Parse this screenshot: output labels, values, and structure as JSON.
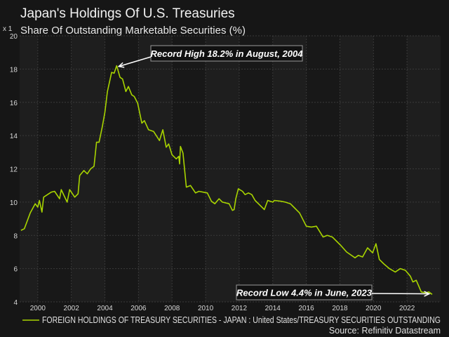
{
  "chart_data": {
    "type": "line",
    "title": "Japan's Holdings Of U.S. Treasuries",
    "subtitle": "Share Of Outstanding Marketable Securities (%)",
    "y_multiplier_label": "x 1",
    "xlim": [
      1998.92,
      2024.0
    ],
    "ylim": [
      4,
      20
    ],
    "x_ticks": [
      "2000",
      "2002",
      "2004",
      "2006",
      "2008",
      "2010",
      "2012",
      "2014",
      "2016",
      "2018",
      "2020",
      "2022"
    ],
    "y_ticks": [
      "4",
      "6",
      "8",
      "10",
      "12",
      "14",
      "16",
      "18",
      "20"
    ],
    "grid": true,
    "line_color": "#a8d400",
    "series": [
      {
        "name": "FOREIGN HOLDINGS OF TREASURY SECURITIES - JAPAN : United States/TREASURY SECURITIES OUTSTANDING",
        "points": [
          [
            1999.0,
            8.3
          ],
          [
            1999.2,
            8.4
          ],
          [
            1999.55,
            9.35
          ],
          [
            1999.85,
            9.9
          ],
          [
            2000.0,
            9.7
          ],
          [
            2000.1,
            10.1
          ],
          [
            2000.25,
            9.4
          ],
          [
            2000.35,
            10.3
          ],
          [
            2000.8,
            10.6
          ],
          [
            2001.0,
            10.65
          ],
          [
            2001.3,
            10.2
          ],
          [
            2001.4,
            10.75
          ],
          [
            2001.75,
            10.0
          ],
          [
            2001.9,
            10.75
          ],
          [
            2002.2,
            10.3
          ],
          [
            2002.4,
            10.5
          ],
          [
            2002.5,
            11.6
          ],
          [
            2002.75,
            11.9
          ],
          [
            2002.95,
            11.7
          ],
          [
            2003.15,
            12.0
          ],
          [
            2003.35,
            12.15
          ],
          [
            2003.5,
            13.6
          ],
          [
            2003.65,
            13.6
          ],
          [
            2003.85,
            14.55
          ],
          [
            2004.0,
            15.4
          ],
          [
            2004.15,
            16.65
          ],
          [
            2004.4,
            17.8
          ],
          [
            2004.55,
            17.75
          ],
          [
            2004.7,
            18.2
          ],
          [
            2004.9,
            17.5
          ],
          [
            2005.05,
            17.4
          ],
          [
            2005.25,
            16.65
          ],
          [
            2005.4,
            16.95
          ],
          [
            2005.6,
            16.45
          ],
          [
            2005.75,
            16.35
          ],
          [
            2005.95,
            15.95
          ],
          [
            2006.2,
            14.75
          ],
          [
            2006.35,
            14.9
          ],
          [
            2006.6,
            14.35
          ],
          [
            2006.9,
            14.25
          ],
          [
            2007.25,
            13.7
          ],
          [
            2007.45,
            14.35
          ],
          [
            2007.65,
            13.3
          ],
          [
            2007.8,
            13.5
          ],
          [
            2008.0,
            12.85
          ],
          [
            2008.25,
            12.6
          ],
          [
            2008.4,
            12.75
          ],
          [
            2008.45,
            12.3
          ],
          [
            2008.5,
            13.35
          ],
          [
            2008.65,
            12.95
          ],
          [
            2008.85,
            10.9
          ],
          [
            2009.1,
            11.0
          ],
          [
            2009.4,
            10.55
          ],
          [
            2009.6,
            10.65
          ],
          [
            2010.1,
            10.55
          ],
          [
            2010.35,
            10.05
          ],
          [
            2010.55,
            9.9
          ],
          [
            2010.8,
            10.2
          ],
          [
            2011.0,
            10.0
          ],
          [
            2011.4,
            9.9
          ],
          [
            2011.6,
            9.5
          ],
          [
            2011.7,
            9.55
          ],
          [
            2011.8,
            10.2
          ],
          [
            2011.95,
            10.8
          ],
          [
            2012.2,
            10.65
          ],
          [
            2012.35,
            10.45
          ],
          [
            2012.55,
            10.55
          ],
          [
            2012.75,
            10.45
          ],
          [
            2012.95,
            10.1
          ],
          [
            2013.25,
            9.8
          ],
          [
            2013.5,
            9.55
          ],
          [
            2013.7,
            10.1
          ],
          [
            2014.0,
            10.0
          ],
          [
            2014.1,
            10.1
          ],
          [
            2014.5,
            10.05
          ],
          [
            2014.75,
            10.0
          ],
          [
            2015.05,
            9.9
          ],
          [
            2015.25,
            9.7
          ],
          [
            2015.6,
            9.35
          ],
          [
            2016.0,
            8.55
          ],
          [
            2016.3,
            8.5
          ],
          [
            2016.6,
            8.55
          ],
          [
            2017.0,
            7.9
          ],
          [
            2017.25,
            8.0
          ],
          [
            2017.55,
            7.9
          ],
          [
            2018.05,
            7.4
          ],
          [
            2018.4,
            7.0
          ],
          [
            2018.9,
            6.65
          ],
          [
            2019.1,
            6.8
          ],
          [
            2019.35,
            6.7
          ],
          [
            2019.65,
            7.25
          ],
          [
            2019.95,
            6.95
          ],
          [
            2020.15,
            7.5
          ],
          [
            2020.35,
            6.55
          ],
          [
            2020.6,
            6.3
          ],
          [
            2020.95,
            6.0
          ],
          [
            2021.3,
            5.8
          ],
          [
            2021.6,
            6.0
          ],
          [
            2021.9,
            5.9
          ],
          [
            2022.2,
            5.55
          ],
          [
            2022.35,
            5.2
          ],
          [
            2022.55,
            5.3
          ],
          [
            2022.85,
            4.6
          ],
          [
            2023.1,
            4.55
          ],
          [
            2023.3,
            4.6
          ],
          [
            2023.5,
            4.45
          ]
        ]
      }
    ],
    "annotations": [
      {
        "text": "Record High 18.2% in August, 2004",
        "x": 2004.7,
        "y": 18.2
      },
      {
        "text": "Record Low 4.4% in June, 2023",
        "x": 2023.45,
        "y": 4.4
      }
    ],
    "legend_placement": "bottom-left",
    "source": "Source: Refinitiv Datastream"
  }
}
